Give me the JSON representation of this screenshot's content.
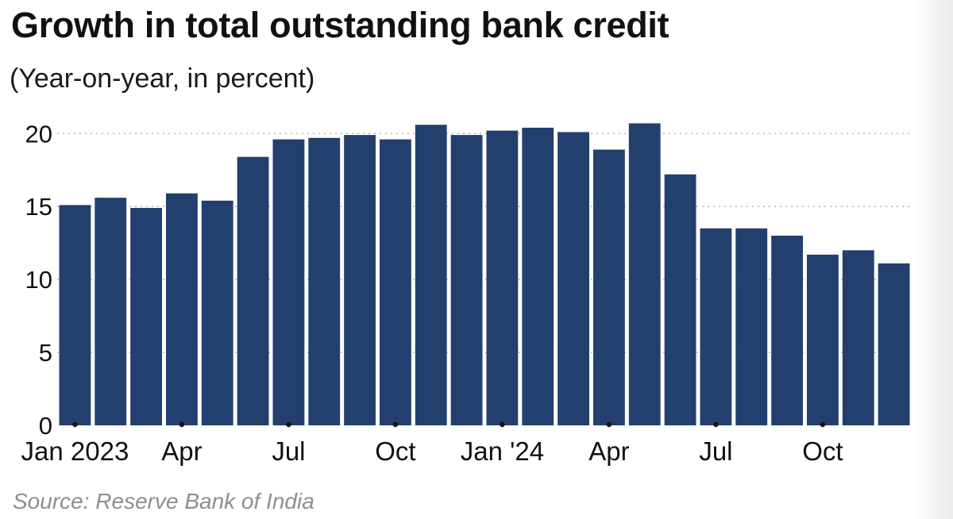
{
  "chart_data": {
    "type": "bar",
    "title": "Growth in total outstanding bank credit",
    "subtitle": "(Year-on-year, in percent)",
    "source": "Source: Reserve Bank of India",
    "categories": [
      "Jan 2023",
      "Feb 2023",
      "Mar 2023",
      "Apr 2023",
      "May 2023",
      "Jun 2023",
      "Jul 2023",
      "Aug 2023",
      "Sep 2023",
      "Oct 2023",
      "Nov 2023",
      "Dec 2023",
      "Jan 2024",
      "Feb 2024",
      "Mar 2024",
      "Apr 2024",
      "May 2024",
      "Jun 2024",
      "Jul 2024",
      "Aug 2024",
      "Sep 2024",
      "Oct 2024",
      "Nov 2024",
      "Dec 2024"
    ],
    "values": [
      15.1,
      15.6,
      14.9,
      15.9,
      15.4,
      18.4,
      19.6,
      19.7,
      19.9,
      19.6,
      20.6,
      19.9,
      20.2,
      20.4,
      20.1,
      18.9,
      20.7,
      17.2,
      13.5,
      13.5,
      13.0,
      11.7,
      12.0,
      11.1
    ],
    "xticks": [
      {
        "index": 0,
        "label": "Jan 2023"
      },
      {
        "index": 3,
        "label": "Apr"
      },
      {
        "index": 6,
        "label": "Jul"
      },
      {
        "index": 9,
        "label": "Oct"
      },
      {
        "index": 12,
        "label": "Jan '24"
      },
      {
        "index": 15,
        "label": "Apr"
      },
      {
        "index": 18,
        "label": "Jul"
      },
      {
        "index": 21,
        "label": "Oct"
      }
    ],
    "yticks": [
      0,
      5,
      10,
      15,
      20
    ],
    "ylim": [
      0,
      22
    ],
    "xlabel": "",
    "ylabel": "",
    "grid": true,
    "bar_color": "#233f6e"
  }
}
